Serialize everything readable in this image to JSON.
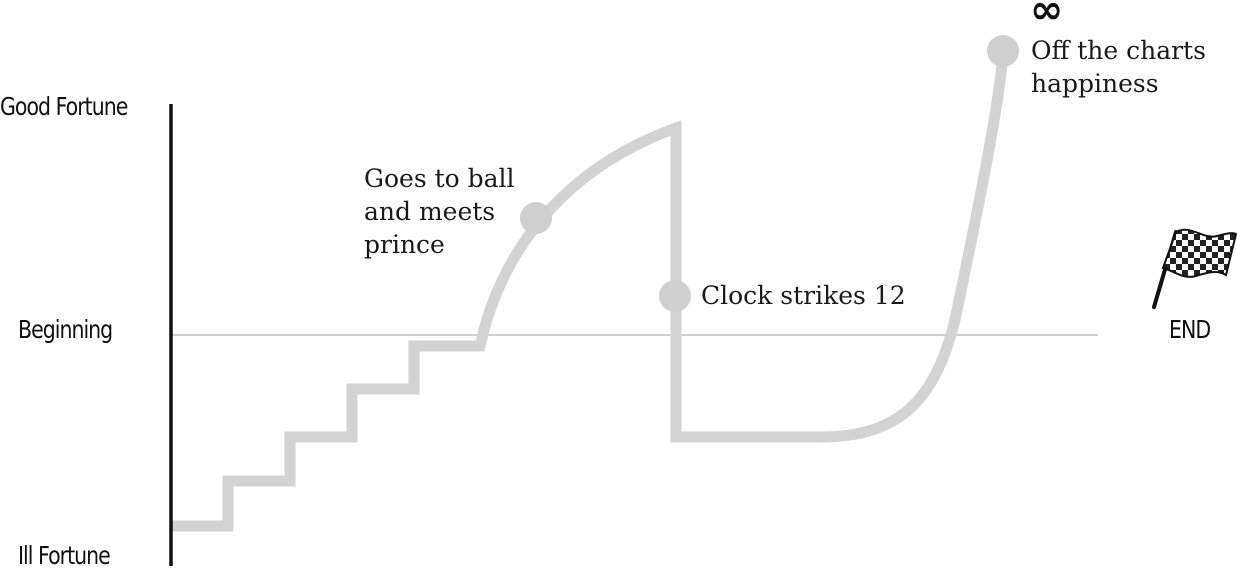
{
  "axis": {
    "top_label": "Good Fortune",
    "middle_label": "Beginning",
    "bottom_label": "Ill Fortune",
    "end_label": "END"
  },
  "annotations": {
    "ball": "Goes to ball\nand meets\nprince",
    "clock": "Clock strikes 12",
    "happiness": "Off the charts\nhappiness",
    "infinity": "∞"
  },
  "colors": {
    "story_line": "#d3d3d3",
    "marker": "#cfcfcf",
    "axis": "#111111",
    "baseline": "#d0d0d0"
  },
  "icons": {
    "end_marker": "checkered-flag-icon"
  }
}
